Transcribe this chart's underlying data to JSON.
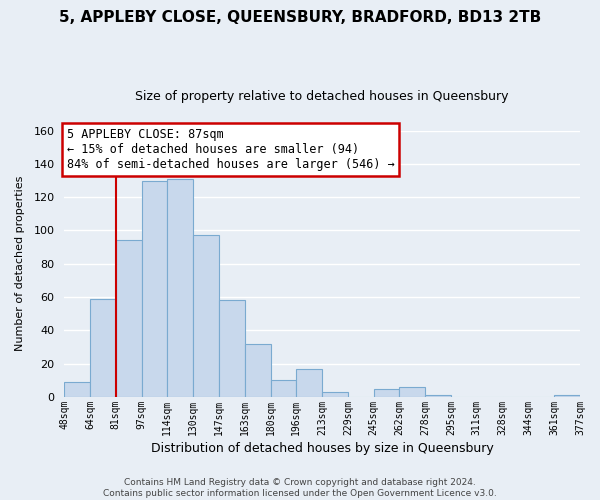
{
  "title": "5, APPLEBY CLOSE, QUEENSBURY, BRADFORD, BD13 2TB",
  "subtitle": "Size of property relative to detached houses in Queensbury",
  "xlabel": "Distribution of detached houses by size in Queensbury",
  "ylabel": "Number of detached properties",
  "footer_line1": "Contains HM Land Registry data © Crown copyright and database right 2024.",
  "footer_line2": "Contains public sector information licensed under the Open Government Licence v3.0.",
  "bin_labels": [
    "48sqm",
    "64sqm",
    "81sqm",
    "97sqm",
    "114sqm",
    "130sqm",
    "147sqm",
    "163sqm",
    "180sqm",
    "196sqm",
    "213sqm",
    "229sqm",
    "245sqm",
    "262sqm",
    "278sqm",
    "295sqm",
    "311sqm",
    "328sqm",
    "344sqm",
    "361sqm",
    "377sqm"
  ],
  "bin_values": [
    9,
    59,
    94,
    130,
    131,
    97,
    58,
    32,
    10,
    17,
    3,
    0,
    5,
    6,
    1,
    0,
    0,
    0,
    0,
    1
  ],
  "bar_color": "#c8d8ec",
  "bar_edge_color": "#7aaad0",
  "annotation_title": "5 APPLEBY CLOSE: 87sqm",
  "annotation_line1": "← 15% of detached houses are smaller (94)",
  "annotation_line2": "84% of semi-detached houses are larger (546) →",
  "annotation_box_color": "#ffffff",
  "annotation_box_edge_color": "#cc0000",
  "ylim": [
    0,
    160
  ],
  "yticks": [
    0,
    20,
    40,
    60,
    80,
    100,
    120,
    140,
    160
  ],
  "bg_color": "#e8eef5",
  "grid_color": "#ffffff",
  "marker_line_color": "#cc0000"
}
